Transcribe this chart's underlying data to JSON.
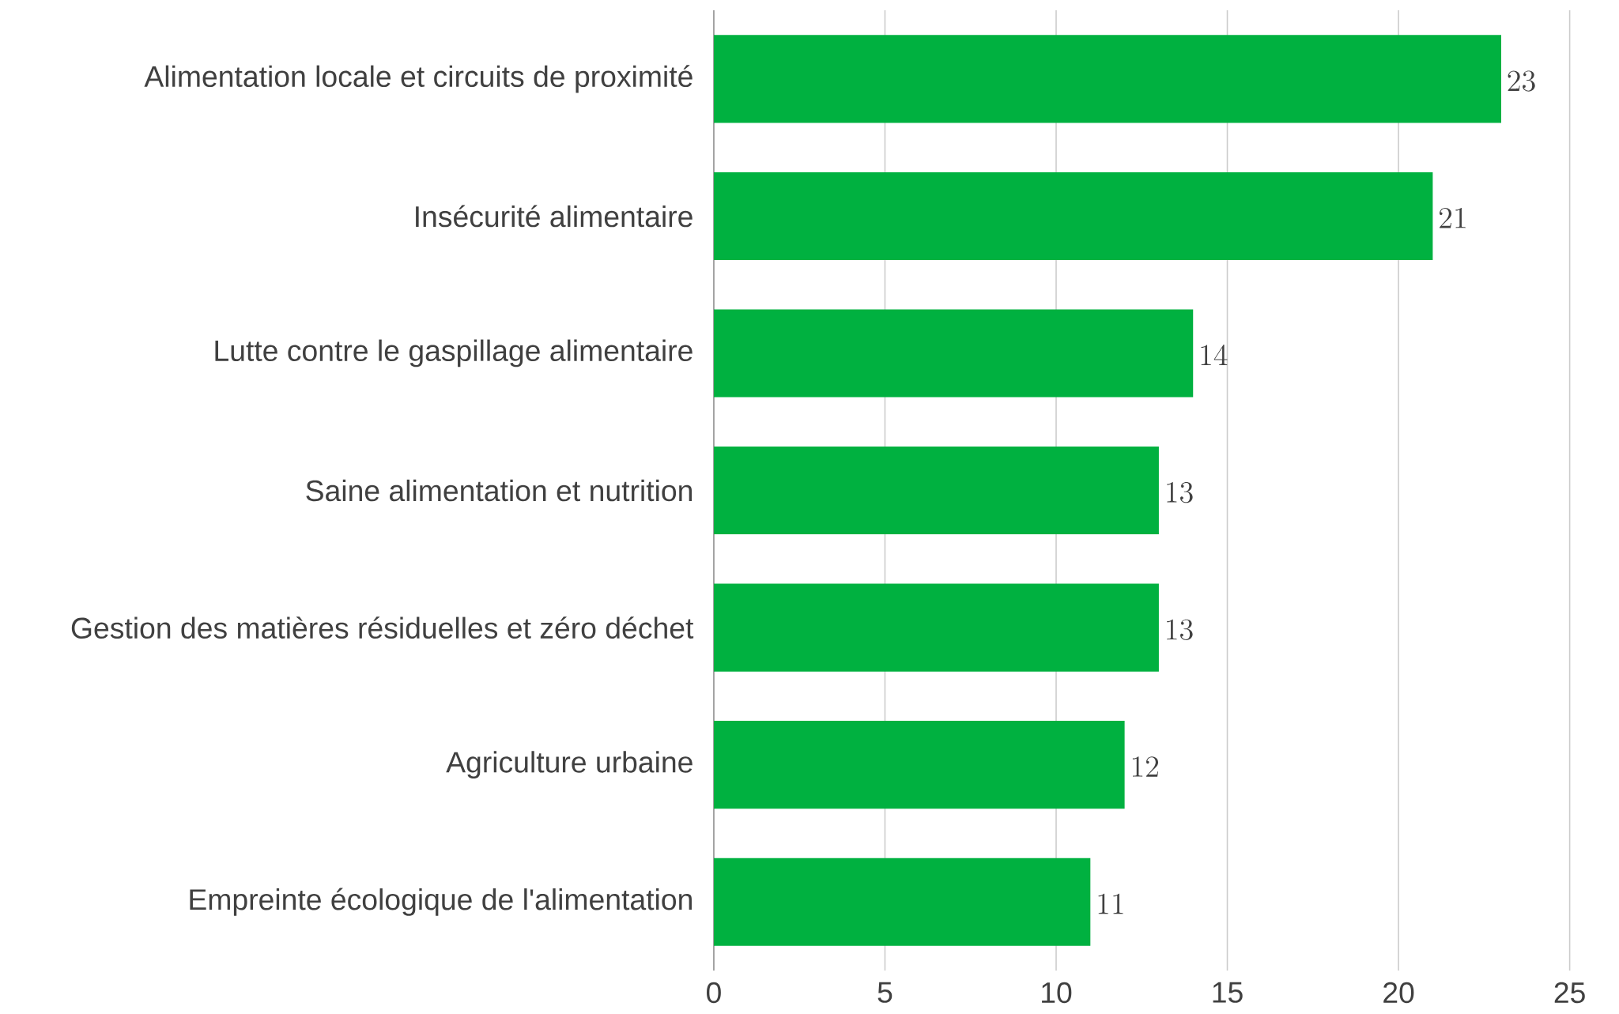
{
  "chart_data": {
    "type": "bar",
    "orientation": "horizontal",
    "categories": [
      "Alimentation locale et circuits de proximité",
      "Insécurité alimentaire",
      "Lutte contre le gaspillage alimentaire",
      "Saine alimentation et nutrition",
      "Gestion des matières résiduelles et zéro déchet",
      "Agriculture urbaine",
      "Empreinte écologique de l'alimentation"
    ],
    "values": [
      23,
      21,
      14,
      13,
      13,
      12,
      11
    ],
    "color": "#00b140",
    "xlim": [
      0,
      25
    ],
    "xticks": [
      0,
      5,
      10,
      15,
      20,
      25
    ],
    "grid": "x",
    "data_labels": true
  }
}
